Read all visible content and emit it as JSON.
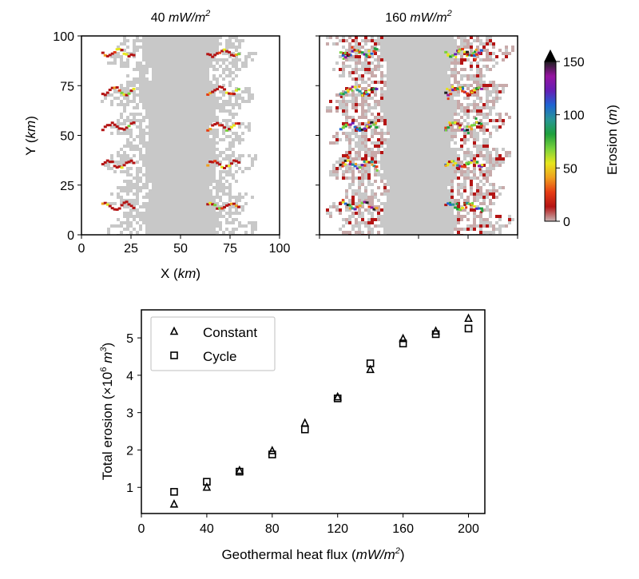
{
  "chart_data": [
    {
      "type": "heatmap",
      "title_value": "40",
      "title_unit": "mW/m",
      "title_exp": "2",
      "xlabel": "X",
      "xlabel_unit": "km",
      "ylabel": "Y",
      "ylabel_unit": "km",
      "xlim": [
        0,
        100
      ],
      "ylim": [
        0,
        100
      ],
      "xticks": [
        0,
        25,
        50,
        75,
        100
      ],
      "yticks": [
        0,
        25,
        50,
        75,
        100
      ],
      "colorbar": {
        "label": "Erosion",
        "label_unit": "m",
        "range": [
          0,
          150
        ],
        "ticks": [
          0,
          50,
          100,
          150
        ],
        "extend": "max",
        "colors": [
          "#c8b4b4",
          "#b41414",
          "#e63c14",
          "#f0a01e",
          "#e6e61e",
          "#78d23c",
          "#1ea03c",
          "#289696",
          "#1e64d2",
          "#641eb4",
          "#9614a0",
          "#1e1e1e"
        ]
      }
    },
    {
      "type": "heatmap",
      "title_value": "160",
      "title_unit": "mW/m",
      "title_exp": "2",
      "xlim": [
        0,
        100
      ],
      "ylim": [
        0,
        100
      ]
    },
    {
      "type": "scatter",
      "xlabel": "Geothermal heat flux",
      "xlabel_unit": "mW/m",
      "xlabel_exp": "2",
      "ylabel": "Total erosion",
      "ylabel_mult": "×10",
      "ylabel_exp": "6",
      "ylabel_unit": "m",
      "ylabel_unit_exp": "3",
      "xlim": [
        0,
        210
      ],
      "ylim": [
        0.3,
        5.75
      ],
      "xticks": [
        0,
        40,
        80,
        120,
        160,
        200
      ],
      "yticks": [
        1,
        2,
        3,
        4,
        5
      ],
      "legend_position": "top-left",
      "series": [
        {
          "name": "Constant",
          "marker": "triangle",
          "x": [
            20,
            40,
            60,
            80,
            100,
            120,
            140,
            160,
            180,
            200
          ],
          "y": [
            0.55,
            1.0,
            1.45,
            1.98,
            2.72,
            3.42,
            4.15,
            4.98,
            5.18,
            5.52
          ]
        },
        {
          "name": "Cycle",
          "marker": "square",
          "x": [
            20,
            40,
            60,
            80,
            100,
            120,
            140,
            160,
            180,
            200
          ],
          "y": [
            0.88,
            1.15,
            1.42,
            1.88,
            2.55,
            3.38,
            4.32,
            4.85,
            5.1,
            5.25
          ]
        }
      ]
    }
  ]
}
